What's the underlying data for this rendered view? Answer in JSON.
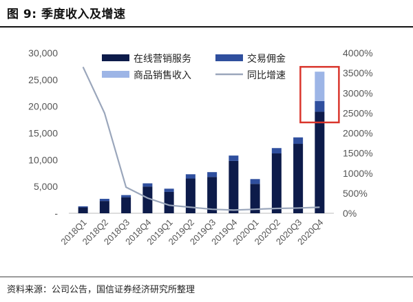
{
  "header": {
    "title": "图 9:  季度收入及增速"
  },
  "footer": {
    "source": "资料来源：公司公告，国信证券经济研究所整理"
  },
  "colors": {
    "online_marketing": "#0d1b4a",
    "commission": "#2f4f9e",
    "product_sales": "#9db5e6",
    "yoy_line": "#9aa6bb",
    "highlight": "#d9342b"
  },
  "chart_data": {
    "type": "bar",
    "stacked": true,
    "categories": [
      "2018Q1",
      "2018Q2",
      "2018Q3",
      "2018Q4",
      "2019Q1",
      "2019Q2",
      "2019Q3",
      "2019Q4",
      "2020Q1",
      "2020Q2",
      "2020Q3",
      "2020Q4"
    ],
    "series": [
      {
        "name": "在线营销服务",
        "values": [
          1100,
          2300,
          3000,
          5000,
          4000,
          6500,
          6800,
          9800,
          5500,
          11200,
          13000,
          19000
        ]
      },
      {
        "name": "交易佣金",
        "values": [
          200,
          400,
          400,
          600,
          600,
          800,
          900,
          1000,
          900,
          1000,
          1200,
          2000
        ]
      },
      {
        "name": "商品销售收入",
        "values": [
          0,
          0,
          0,
          0,
          0,
          0,
          0,
          0,
          0,
          0,
          0,
          5500
        ]
      }
    ],
    "line_series": {
      "name": "同比增速",
      "axis": "right",
      "values": [
        3650,
        2500,
        650,
        380,
        200,
        150,
        100,
        80,
        100,
        120,
        130,
        150
      ]
    },
    "yleft": {
      "min": 0,
      "max": 30000,
      "step": 5000,
      "ticks": [
        "-",
        "5,000",
        "10,000",
        "15,000",
        "20,000",
        "25,000",
        "30,000"
      ]
    },
    "yright": {
      "min": 0,
      "max": 4000,
      "step": 500,
      "ticks": [
        "0%",
        "500%",
        "1000%",
        "1500%",
        "2000%",
        "2500%",
        "3000%",
        "3500%",
        "4000%"
      ]
    },
    "legend_position": "top-center",
    "grid": false,
    "highlight_category": "2020Q4"
  }
}
